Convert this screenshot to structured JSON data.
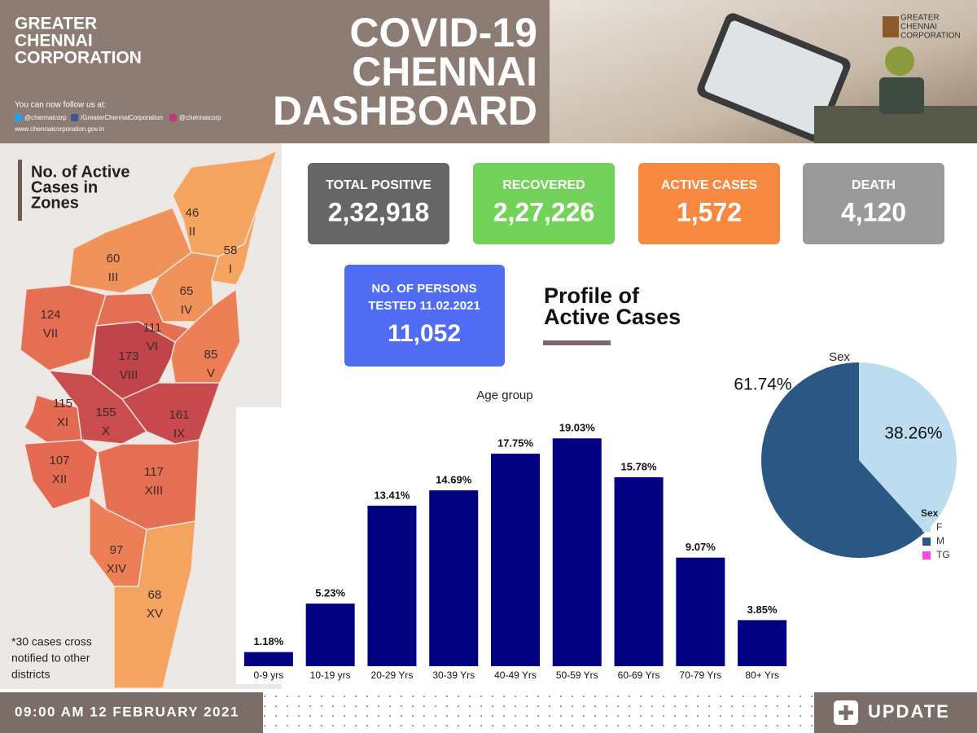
{
  "header": {
    "org": [
      "GREATER",
      "CHENNAI",
      "CORPORATION"
    ],
    "follow": "You can now follow us at:",
    "twitter": "@chennaicorp",
    "facebook": "/GreaterChennaiCorporation",
    "instagram": "@chennaicorp",
    "website": "www.chennaicorporation.gov.in",
    "title": [
      "COVID-19",
      "CHENNAI",
      "DASHBOARD"
    ],
    "logo": [
      "GREATER",
      "CHENNAI",
      "CORPORATION"
    ]
  },
  "stats": [
    {
      "label": "TOTAL POSITIVE",
      "value": "2,32,918"
    },
    {
      "label": "RECOVERED",
      "value": "2,27,226"
    },
    {
      "label": "ACTIVE CASES",
      "value": "1,572"
    },
    {
      "label": "DEATH",
      "value": "4,120"
    }
  ],
  "tested": {
    "label": [
      "NO. OF PERSONS",
      "TESTED 11.02.2021"
    ],
    "value": "11,052"
  },
  "map": {
    "title": [
      "No. of Active",
      "Cases in",
      "Zones"
    ],
    "zones": [
      {
        "count": "58",
        "zone": "I"
      },
      {
        "count": "46",
        "zone": "II"
      },
      {
        "count": "60",
        "zone": "III"
      },
      {
        "count": "65",
        "zone": "IV"
      },
      {
        "count": "85",
        "zone": "V"
      },
      {
        "count": "111",
        "zone": "VI"
      },
      {
        "count": "124",
        "zone": "VII"
      },
      {
        "count": "173",
        "zone": "VIII"
      },
      {
        "count": "161",
        "zone": "IX"
      },
      {
        "count": "155",
        "zone": "X"
      },
      {
        "count": "115",
        "zone": "XI"
      },
      {
        "count": "107",
        "zone": "XII"
      },
      {
        "count": "117",
        "zone": "XIII"
      },
      {
        "count": "97",
        "zone": "XIV"
      },
      {
        "count": "68",
        "zone": "XV"
      }
    ],
    "note": [
      "*30 cases cross",
      "notified to other",
      "districts"
    ]
  },
  "profile_title": [
    "Profile of",
    "Active Cases"
  ],
  "chart_data": [
    {
      "type": "bar",
      "title": "Age group",
      "categories": [
        "0-9 yrs",
        "10-19 yrs",
        "20-29 Yrs",
        "30-39 Yrs",
        "40-49 Yrs",
        "50-59 Yrs",
        "60-69 Yrs",
        "70-79 Yrs",
        "80+ Yrs"
      ],
      "values": [
        1.18,
        5.23,
        13.41,
        14.69,
        17.75,
        19.03,
        15.78,
        9.07,
        3.85
      ],
      "value_labels": [
        "1.18%",
        "5.23%",
        "13.41%",
        "14.69%",
        "17.75%",
        "19.03%",
        "15.78%",
        "9.07%",
        "3.85%"
      ],
      "color": "#000080",
      "ylim": [
        0,
        20
      ]
    },
    {
      "type": "pie",
      "title": "Sex",
      "legend_title": "Sex",
      "categories": [
        "F",
        "M",
        "TG"
      ],
      "values": [
        38.26,
        61.74,
        0
      ],
      "value_labels": [
        "38.26%",
        "61.74%",
        null
      ],
      "colors": [
        "#bcdcf0",
        "#2a5783",
        "#ff44dd"
      ]
    }
  ],
  "footer": {
    "datetime": "09:00 AM 12 FEBRUARY 2021",
    "update": "UPDATE"
  }
}
